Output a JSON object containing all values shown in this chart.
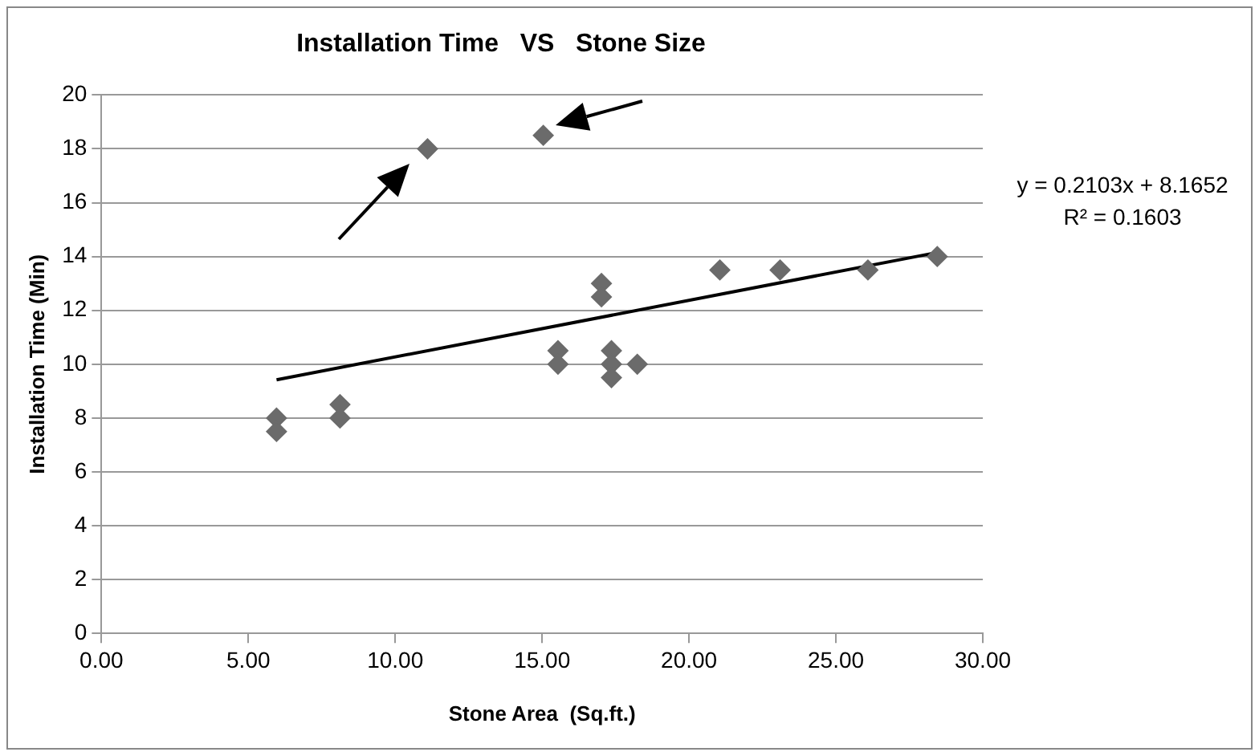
{
  "chart_data": {
    "type": "scatter",
    "title": "Installation Time   VS   Stone Size",
    "xlabel": "Stone Area  (Sq.ft.)",
    "ylabel": "Installation Time (Min)",
    "xlim": [
      0,
      30
    ],
    "xticks": [
      {
        "value": 0,
        "label": "0.00"
      },
      {
        "value": 5,
        "label": "5.00"
      },
      {
        "value": 10,
        "label": "10.00"
      },
      {
        "value": 15,
        "label": "15.00"
      },
      {
        "value": 20,
        "label": "20.00"
      },
      {
        "value": 25,
        "label": "25.00"
      },
      {
        "value": 30,
        "label": "30.00"
      }
    ],
    "ylim": [
      0,
      20
    ],
    "yticks": [
      0,
      2,
      4,
      6,
      8,
      10,
      12,
      14,
      16,
      18,
      20
    ],
    "grid": "y",
    "legend": false,
    "marker": "diamond",
    "series": [
      {
        "type": "scatter",
        "color": "#6b6b6b",
        "x": [
          5.96,
          5.96,
          8.12,
          8.12,
          11.1,
          15.04,
          15.54,
          15.54,
          17.02,
          17.02,
          17.36,
          17.36,
          17.36,
          18.24,
          21.05,
          23.1,
          26.09,
          28.45
        ],
        "values": [
          8,
          7.5,
          8.5,
          8,
          18,
          18.5,
          10.5,
          10,
          13,
          12.5,
          10.5,
          10,
          9.5,
          10,
          13.5,
          13.5,
          13.5,
          14
        ]
      },
      {
        "type": "line",
        "marker": "none",
        "color": "#000000",
        "x": [
          5.96,
          28.45
        ],
        "values": [
          9.42,
          14.15
        ]
      }
    ],
    "annotations": [
      "y = 0.2103x + 8.1652",
      "R² = 0.1603"
    ]
  }
}
